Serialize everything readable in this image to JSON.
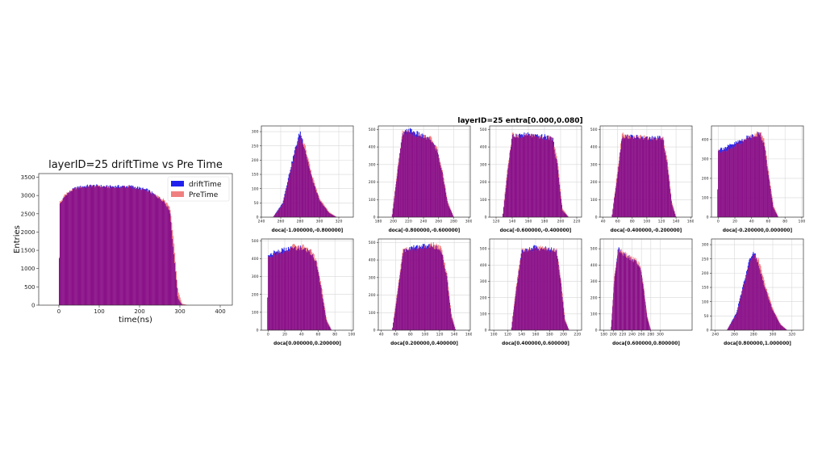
{
  "main": {
    "title": "layerID=25 driftTime vs Pre Time",
    "xlabel": "time(ns)",
    "ylabel": "Entries",
    "legend": [
      "driftTime",
      "PreTime"
    ]
  },
  "grid_title": "layerID=25 entra[0.000,0.080]",
  "colors": {
    "driftTime": "#2020ee",
    "preTime": "#f08080",
    "overlap": "#8b1289"
  },
  "chart_data": [
    {
      "type": "bar",
      "title": "layerID=25 driftTime vs Pre Time",
      "xlabel": "time(ns)",
      "ylabel": "Entries",
      "xlim": [
        -50,
        430
      ],
      "ylim": [
        0,
        3600
      ],
      "xticks": [
        0,
        100,
        200,
        300,
        400
      ],
      "yticks": [
        0,
        500,
        1000,
        1500,
        2000,
        2500,
        3000,
        3500
      ],
      "legend_position": "top-right",
      "grid": false,
      "series": [
        {
          "name": "driftTime",
          "x": [
            0,
            2,
            10,
            20,
            40,
            60,
            80,
            100,
            120,
            140,
            160,
            180,
            200,
            220,
            240,
            260,
            275,
            285,
            295,
            305,
            320
          ],
          "values": [
            0,
            2750,
            2900,
            3050,
            3200,
            3250,
            3270,
            3260,
            3240,
            3250,
            3250,
            3250,
            3200,
            3150,
            3000,
            2850,
            2600,
            1400,
            200,
            20,
            0
          ]
        },
        {
          "name": "PreTime",
          "x": [
            0,
            2,
            10,
            20,
            40,
            60,
            80,
            100,
            120,
            140,
            160,
            180,
            200,
            220,
            240,
            260,
            275,
            285,
            295,
            305,
            320
          ],
          "values": [
            0,
            2800,
            2950,
            3080,
            3180,
            3230,
            3250,
            3250,
            3230,
            3240,
            3240,
            3230,
            3180,
            3120,
            3000,
            2880,
            2700,
            1700,
            400,
            40,
            0
          ]
        }
      ]
    },
    {
      "type": "bar",
      "xlabel": "doca[-1.000000,-0.800000]",
      "xlim": [
        240,
        335
      ],
      "ylim": [
        0,
        320
      ],
      "xticks": [
        240,
        260,
        280,
        300,
        320
      ],
      "yticks": [
        0,
        50,
        100,
        150,
        200,
        250,
        300
      ],
      "grid": true,
      "series": [
        {
          "name": "driftTime",
          "x": [
            252,
            262,
            270,
            275,
            280,
            285,
            292,
            300,
            310,
            318
          ],
          "values": [
            0,
            50,
            170,
            240,
            300,
            240,
            140,
            60,
            15,
            0
          ]
        },
        {
          "name": "PreTime",
          "x": [
            252,
            262,
            270,
            275,
            280,
            285,
            292,
            300,
            310,
            318
          ],
          "values": [
            0,
            45,
            160,
            230,
            280,
            250,
            150,
            65,
            18,
            0
          ]
        }
      ]
    },
    {
      "type": "bar",
      "xlabel": "doca[-0.800000,-0.600000]",
      "xlim": [
        180,
        302
      ],
      "ylim": [
        0,
        520
      ],
      "xticks": [
        180,
        200,
        220,
        240,
        260,
        280,
        300
      ],
      "yticks": [
        0,
        100,
        200,
        300,
        400,
        500
      ],
      "grid": true,
      "series": [
        {
          "name": "driftTime",
          "x": [
            198,
            206,
            212,
            220,
            230,
            240,
            250,
            258,
            265,
            272,
            280
          ],
          "values": [
            0,
            280,
            470,
            500,
            480,
            460,
            440,
            380,
            250,
            80,
            0
          ]
        },
        {
          "name": "PreTime",
          "x": [
            198,
            206,
            212,
            220,
            230,
            240,
            250,
            258,
            265,
            272,
            280
          ],
          "values": [
            0,
            300,
            480,
            490,
            470,
            460,
            450,
            390,
            260,
            90,
            0
          ]
        }
      ]
    },
    {
      "type": "bar",
      "xlabel": "doca[-0.600000,-0.400000]",
      "xlim": [
        112,
        226
      ],
      "ylim": [
        0,
        520
      ],
      "xticks": [
        120,
        140,
        160,
        180,
        200,
        220
      ],
      "yticks": [
        0,
        100,
        200,
        300,
        400,
        500
      ],
      "grid": true,
      "series": [
        {
          "name": "driftTime",
          "x": [
            128,
            134,
            140,
            150,
            160,
            170,
            180,
            190,
            196,
            202,
            210
          ],
          "values": [
            0,
            250,
            460,
            470,
            470,
            460,
            460,
            450,
            300,
            40,
            0
          ]
        },
        {
          "name": "PreTime",
          "x": [
            128,
            134,
            140,
            150,
            160,
            170,
            180,
            190,
            196,
            202,
            210
          ],
          "values": [
            0,
            270,
            470,
            460,
            470,
            470,
            450,
            455,
            320,
            50,
            0
          ]
        }
      ]
    },
    {
      "type": "bar",
      "xlabel": "doca[-0.400000,-0.200000]",
      "xlim": [
        36,
        162
      ],
      "ylim": [
        0,
        520
      ],
      "xticks": [
        40,
        60,
        80,
        100,
        120,
        140,
        160
      ],
      "yticks": [
        0,
        100,
        200,
        300,
        400,
        500
      ],
      "grid": true,
      "series": [
        {
          "name": "driftTime",
          "x": [
            52,
            60,
            66,
            80,
            95,
            110,
            122,
            128,
            134,
            140
          ],
          "values": [
            0,
            250,
            460,
            460,
            450,
            450,
            450,
            300,
            80,
            0
          ]
        },
        {
          "name": "PreTime",
          "x": [
            52,
            60,
            66,
            80,
            95,
            110,
            122,
            128,
            134,
            140
          ],
          "values": [
            0,
            270,
            470,
            450,
            460,
            440,
            455,
            320,
            90,
            0
          ]
        }
      ]
    },
    {
      "type": "bar",
      "xlabel": "doca[-0.200000,0.000000]",
      "xlim": [
        -8,
        102
      ],
      "ylim": [
        0,
        470
      ],
      "xticks": [
        0,
        20,
        40,
        60,
        80,
        100
      ],
      "yticks": [
        0,
        100,
        200,
        300,
        400
      ],
      "grid": true,
      "series": [
        {
          "name": "driftTime",
          "x": [
            -1,
            0,
            10,
            20,
            30,
            40,
            50,
            55,
            60,
            66,
            72
          ],
          "values": [
            0,
            350,
            360,
            380,
            400,
            420,
            430,
            380,
            220,
            50,
            0
          ]
        },
        {
          "name": "PreTime",
          "x": [
            -1,
            0,
            10,
            20,
            30,
            40,
            50,
            55,
            60,
            66,
            72
          ],
          "values": [
            0,
            340,
            350,
            370,
            390,
            415,
            440,
            400,
            240,
            60,
            0
          ]
        }
      ]
    },
    {
      "type": "bar",
      "xlabel": "doca[0.000000,0.200000]",
      "xlim": [
        -8,
        102
      ],
      "ylim": [
        0,
        510
      ],
      "xticks": [
        0,
        20,
        40,
        60,
        80,
        100
      ],
      "yticks": [
        0,
        100,
        200,
        300,
        400,
        500
      ],
      "grid": true,
      "series": [
        {
          "name": "driftTime",
          "x": [
            -1,
            0,
            10,
            20,
            30,
            40,
            50,
            58,
            64,
            70,
            76
          ],
          "values": [
            0,
            420,
            440,
            450,
            460,
            460,
            440,
            380,
            220,
            50,
            0
          ]
        },
        {
          "name": "PreTime",
          "x": [
            -1,
            0,
            10,
            20,
            30,
            40,
            50,
            58,
            64,
            70,
            76
          ],
          "values": [
            0,
            410,
            430,
            440,
            470,
            470,
            450,
            390,
            240,
            60,
            0
          ]
        }
      ]
    },
    {
      "type": "bar",
      "xlabel": "doca[0.200000,0.400000]",
      "xlim": [
        36,
        162
      ],
      "ylim": [
        0,
        520
      ],
      "xticks": [
        40,
        60,
        80,
        100,
        120,
        140,
        160
      ],
      "yticks": [
        0,
        100,
        200,
        300,
        400,
        500
      ],
      "grid": true,
      "series": [
        {
          "name": "driftTime",
          "x": [
            55,
            62,
            70,
            80,
            95,
            110,
            122,
            130,
            136,
            142
          ],
          "values": [
            0,
            200,
            450,
            470,
            480,
            480,
            460,
            300,
            80,
            0
          ]
        },
        {
          "name": "PreTime",
          "x": [
            55,
            62,
            70,
            80,
            95,
            110,
            122,
            130,
            136,
            142
          ],
          "values": [
            0,
            220,
            460,
            460,
            470,
            490,
            470,
            320,
            90,
            0
          ]
        }
      ]
    },
    {
      "type": "bar",
      "xlabel": "doca[0.400000,0.600000]",
      "xlim": [
        94,
        226
      ],
      "ylim": [
        0,
        560
      ],
      "xticks": [
        100,
        120,
        140,
        160,
        180,
        200,
        220
      ],
      "yticks": [
        0,
        100,
        200,
        300,
        400,
        500
      ],
      "grid": true,
      "series": [
        {
          "name": "driftTime",
          "x": [
            125,
            132,
            140,
            150,
            160,
            170,
            180,
            190,
            196,
            202,
            208
          ],
          "values": [
            0,
            250,
            480,
            500,
            510,
            500,
            500,
            490,
            300,
            60,
            0
          ]
        },
        {
          "name": "PreTime",
          "x": [
            125,
            132,
            140,
            150,
            160,
            170,
            180,
            190,
            196,
            202,
            208
          ],
          "values": [
            0,
            270,
            490,
            490,
            500,
            510,
            490,
            495,
            320,
            70,
            0
          ]
        }
      ]
    },
    {
      "type": "bar",
      "xlabel": "doca[0.600000,0.800000]",
      "xlim": [
        172,
        368
      ],
      "ylim": [
        0,
        560
      ],
      "xticks": [
        180,
        200,
        220,
        240,
        260,
        280,
        300
      ],
      "yticks": [
        0,
        100,
        200,
        300,
        400,
        500
      ],
      "grid": true,
      "series": [
        {
          "name": "driftTime",
          "x": [
            195,
            202,
            210,
            220,
            230,
            240,
            250,
            258,
            265,
            272,
            280
          ],
          "values": [
            0,
            300,
            500,
            470,
            450,
            430,
            420,
            380,
            250,
            80,
            0
          ]
        },
        {
          "name": "PreTime",
          "x": [
            195,
            202,
            210,
            220,
            230,
            240,
            250,
            258,
            265,
            272,
            280
          ],
          "values": [
            0,
            320,
            490,
            480,
            460,
            440,
            430,
            390,
            260,
            90,
            0
          ]
        }
      ]
    },
    {
      "type": "bar",
      "xlabel": "doca[0.800000,1.000000]",
      "xlim": [
        236,
        332
      ],
      "ylim": [
        0,
        320
      ],
      "xticks": [
        240,
        260,
        280,
        300,
        320
      ],
      "yticks": [
        0,
        50,
        100,
        150,
        200,
        250,
        300
      ],
      "grid": true,
      "series": [
        {
          "name": "driftTime",
          "x": [
            252,
            262,
            270,
            275,
            280,
            285,
            292,
            300,
            308,
            315
          ],
          "values": [
            0,
            60,
            170,
            240,
            280,
            230,
            150,
            70,
            20,
            0
          ]
        },
        {
          "name": "PreTime",
          "x": [
            252,
            262,
            270,
            275,
            280,
            285,
            292,
            300,
            308,
            315
          ],
          "values": [
            0,
            55,
            160,
            230,
            270,
            250,
            160,
            75,
            22,
            0
          ]
        }
      ]
    }
  ]
}
